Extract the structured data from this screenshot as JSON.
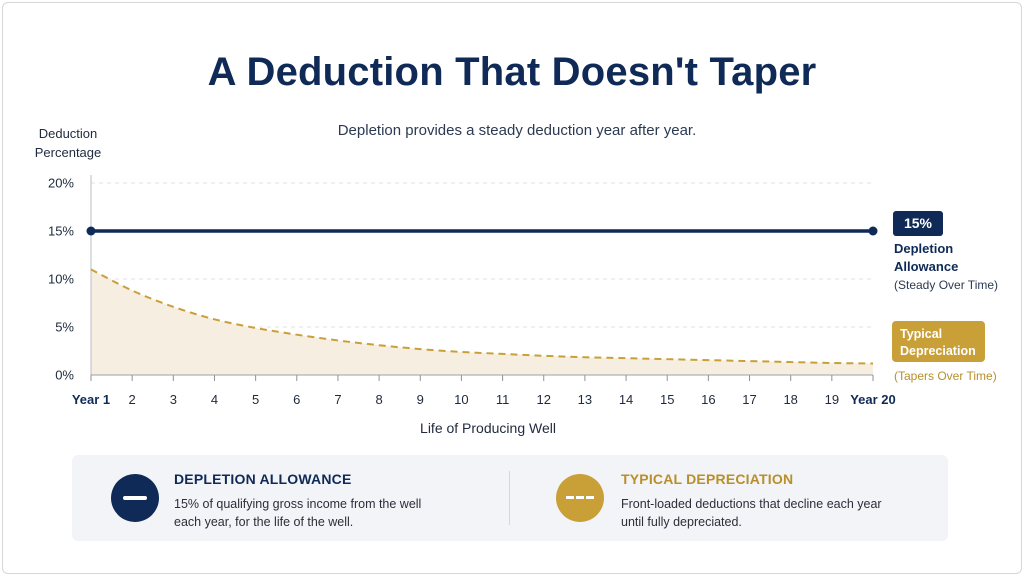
{
  "title": "A Deduction That Doesn't Taper",
  "subtitle": "Depletion provides a steady deduction year after year.",
  "colors": {
    "navy": "#0f2a57",
    "gold": "#c9a038",
    "fill": "#f6efe1",
    "grid": "#e3e3e3"
  },
  "chart_data": {
    "type": "line",
    "title": "A Deduction That Doesn't Taper",
    "subtitle": "Depletion provides a steady deduction year after year.",
    "ylabel": "Deduction Percentage",
    "xlabel": "Life of Producing Well",
    "ylim": [
      0,
      20
    ],
    "yticks": [
      0,
      5,
      10,
      15,
      20
    ],
    "ytick_labels": [
      "0%",
      "5%",
      "10%",
      "15%",
      "20%"
    ],
    "x": [
      1,
      2,
      3,
      4,
      5,
      6,
      7,
      8,
      9,
      10,
      11,
      12,
      13,
      14,
      15,
      16,
      17,
      18,
      19,
      20
    ],
    "xtick_labels": [
      "Year 1",
      "2",
      "3",
      "4",
      "5",
      "6",
      "7",
      "8",
      "9",
      "10",
      "11",
      "12",
      "13",
      "14",
      "15",
      "16",
      "17",
      "18",
      "19",
      "Year 20"
    ],
    "grid": true,
    "series": [
      {
        "name": "Depletion Allowance",
        "style": "solid",
        "color": "#0f2a57",
        "values": [
          15,
          15,
          15,
          15,
          15,
          15,
          15,
          15,
          15,
          15,
          15,
          15,
          15,
          15,
          15,
          15,
          15,
          15,
          15,
          15
        ]
      },
      {
        "name": "Typical Depreciation",
        "style": "dashed",
        "color": "#c9a038",
        "values": [
          11,
          8.8,
          7.1,
          5.8,
          4.9,
          4.2,
          3.6,
          3.1,
          2.7,
          2.4,
          2.2,
          2.0,
          1.85,
          1.75,
          1.65,
          1.55,
          1.45,
          1.35,
          1.25,
          1.2
        ]
      }
    ],
    "annotations": {
      "depletion_badge": "15%",
      "depletion_label_line1": "Depletion",
      "depletion_label_line2": "Allowance",
      "depletion_note": "(Steady Over Time)",
      "depreciation_label_line1": "Typical",
      "depreciation_label_line2": "Depreciation",
      "depreciation_note": "(Tapers Over Time)"
    }
  },
  "legend": {
    "depletion": {
      "title": "DEPLETION ALLOWANCE",
      "desc_line1": "15% of qualifying gross income from the well",
      "desc_line2": "each year, for the life of the well.",
      "icon": "solid-line-icon"
    },
    "depreciation": {
      "title": "TYPICAL DEPRECIATION",
      "desc_line1": "Front-loaded deductions that decline each year",
      "desc_line2": "until fully depreciated.",
      "icon": "dashed-line-icon"
    }
  }
}
